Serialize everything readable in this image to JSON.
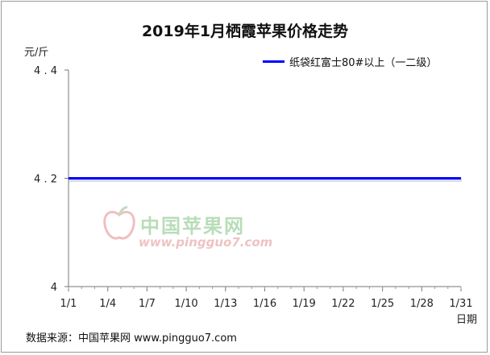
{
  "chart_data": {
    "type": "line",
    "title": "2019年1月栖霞苹果价格走势",
    "ylabel": "元/斤",
    "xlabel": "日期",
    "categories": [
      "1/1",
      "1/4",
      "1/7",
      "1/10",
      "1/13",
      "1/16",
      "1/19",
      "1/22",
      "1/25",
      "1/28",
      "1/31"
    ],
    "y_ticks": [
      "4",
      "4.2",
      "4.4"
    ],
    "ylim": [
      4,
      4.4
    ],
    "xlim_days": [
      1,
      31
    ],
    "series": [
      {
        "name": "纸袋红富士80#以上（一二级）",
        "color": "#0000ff",
        "x": [
          1,
          31
        ],
        "values": [
          4.2,
          4.2
        ]
      }
    ],
    "grid": false,
    "legend": "top-right"
  },
  "source": "数据来源：中国苹果网 www.pingguo7.com",
  "watermark": {
    "name": "中国苹果网",
    "url": "www.pingguo7.com"
  }
}
